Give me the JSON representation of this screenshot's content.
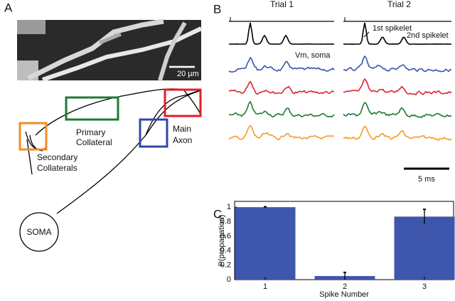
{
  "panels": {
    "a": "A",
    "b": "B",
    "c": "C"
  },
  "panel_a": {
    "scale_bar": "20 µm",
    "primary": [
      "Primary",
      "Collateral"
    ],
    "secondary": [
      "Secondary",
      "Collaterals"
    ],
    "axon": [
      "Main",
      "Axon"
    ],
    "soma": "SOMA"
  },
  "panel_b": {
    "trials": [
      "Trial 1",
      "Trial 2"
    ],
    "vm_label": "Vm, soma",
    "spikelet_1": "1st spikelet",
    "spikelet_2": "2nd spikelet",
    "scale_bar": "5 ms"
  },
  "chart_data": {
    "type": "bar",
    "ylabel": "P(propagation)",
    "xlabel": "Spike Number",
    "categories": [
      "1",
      "2",
      "3"
    ],
    "values": [
      1.0,
      0.05,
      0.87
    ],
    "errors": [
      0.005,
      0.05,
      0.1
    ],
    "color": "#3f56ad",
    "ylim": [
      0,
      1.08
    ],
    "yticks": [
      0,
      0.2,
      0.4,
      0.6,
      0.8,
      1
    ]
  }
}
